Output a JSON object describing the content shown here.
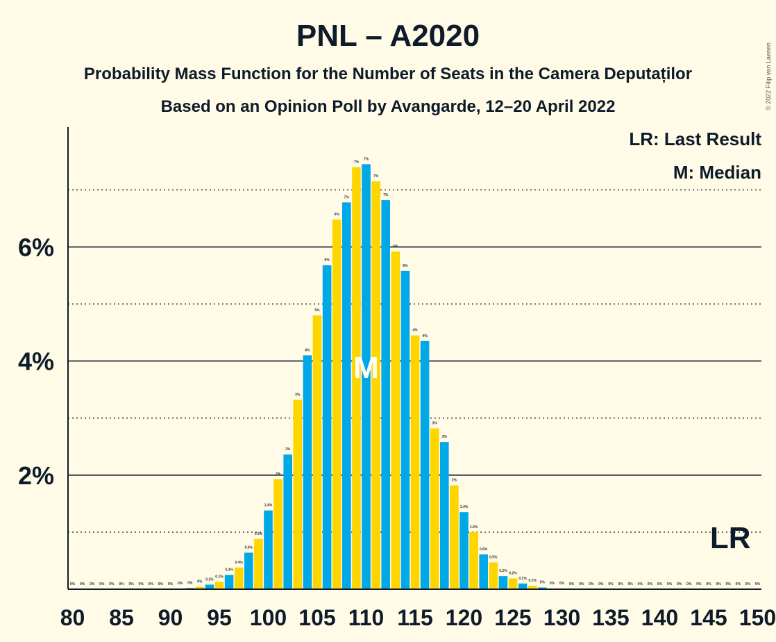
{
  "chart_data": {
    "type": "bar",
    "title": "PNL – A2020",
    "subtitle_line1": "Probability Mass Function for the Number of Seats in the Camera Deputaților",
    "subtitle_line2": "Based on an Opinion Poll by Avangarde, 12–20 April 2022",
    "copyright": "© 2022 Filip van Laenen",
    "legend": {
      "last_result": "LR: Last Result",
      "median": "M: Median",
      "placement": "top-right"
    },
    "x_range": [
      80,
      150
    ],
    "x_ticks": [
      80,
      85,
      90,
      95,
      100,
      105,
      110,
      115,
      120,
      125,
      130,
      135,
      140,
      145,
      150
    ],
    "x_tick_labels": [
      "80",
      "85",
      "90",
      "95",
      "100",
      "105",
      "110",
      "115",
      "120",
      "125",
      "130",
      "135",
      "140",
      "145",
      "150"
    ],
    "ylim": [
      0,
      8.1
    ],
    "y_ticks": [
      2,
      4,
      6
    ],
    "y_tick_labels": [
      "2%",
      "4%",
      "6%"
    ],
    "y_dotted_gridlines": [
      1,
      3,
      5,
      7
    ],
    "median_seat": 110,
    "median_marker": "M",
    "last_result_seat": 150,
    "last_result_marker": "LR",
    "colors": {
      "blue": "#00a8e8",
      "yellow": "#ffd500",
      "background": "#fffbe6",
      "text": "#0d1b2a"
    },
    "seats": [
      80,
      81,
      82,
      83,
      84,
      85,
      86,
      87,
      88,
      89,
      90,
      91,
      92,
      93,
      94,
      95,
      96,
      97,
      98,
      99,
      100,
      101,
      102,
      103,
      104,
      105,
      106,
      107,
      108,
      109,
      110,
      111,
      112,
      113,
      114,
      115,
      116,
      117,
      118,
      119,
      120,
      121,
      122,
      123,
      124,
      125,
      126,
      127,
      128,
      129,
      130,
      131,
      132,
      133,
      134,
      135,
      136,
      137,
      138,
      139,
      140,
      141,
      142,
      143,
      144,
      145,
      146,
      147,
      148,
      149,
      150
    ],
    "values": [
      0,
      0,
      0,
      0,
      0,
      0,
      0,
      0,
      0,
      0,
      0,
      0.01,
      0.02,
      0.04,
      0.08,
      0.13,
      0.25,
      0.38,
      0.64,
      0.88,
      1.38,
      1.93,
      2.36,
      3.32,
      4.1,
      4.8,
      5.68,
      6.48,
      6.78,
      7.4,
      7.45,
      7.15,
      6.82,
      5.92,
      5.58,
      4.45,
      4.35,
      2.82,
      2.58,
      1.82,
      1.35,
      1.0,
      0.61,
      0.47,
      0.23,
      0.19,
      0.1,
      0.06,
      0.03,
      0.01,
      0.01,
      0,
      0,
      0,
      0,
      0,
      0,
      0,
      0,
      0,
      0,
      0,
      0,
      0,
      0,
      0,
      0,
      0,
      0,
      0,
      0
    ],
    "value_labels": [
      "0%",
      "0%",
      "0%",
      "0%",
      "0%",
      "0%",
      "0%",
      "0%",
      "0%",
      "0%",
      "0%",
      "0%",
      "0%",
      "0%",
      "0.1%",
      "0.1%",
      "0.3%",
      "0.4%",
      "0.6%",
      "0.9%",
      "1.4%",
      "2%",
      "2%",
      "3%",
      "4%",
      "5%",
      "6%",
      "6%",
      "7%",
      "7%",
      "7%",
      "7%",
      "7%",
      "6%",
      "6%",
      "4%",
      "4%",
      "3%",
      "3%",
      "2%",
      "1.4%",
      "1.0%",
      "0.6%",
      "0.5%",
      "0.2%",
      "0.2%",
      "0.1%",
      "0.1%",
      "0%",
      "0%",
      "0%",
      "0%",
      "0%",
      "0%",
      "0%",
      "0%",
      "0%",
      "0%",
      "0%",
      "0%",
      "0%",
      "0%",
      "0%",
      "0%",
      "0%",
      "0%",
      "0%",
      "0%",
      "0%",
      "0%",
      "0%"
    ]
  }
}
